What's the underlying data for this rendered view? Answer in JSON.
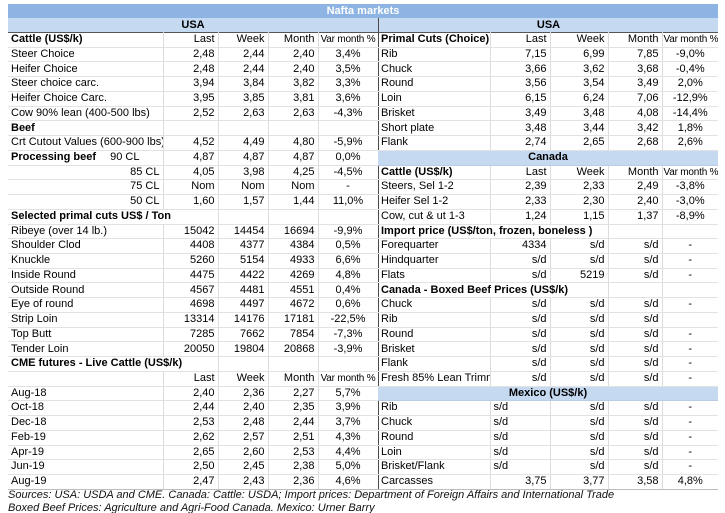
{
  "title": "Nafta markets",
  "colors": {
    "title_bg": "#8DB4E2",
    "section_bg": "#C5D9F1",
    "divider": "#4a4a4a"
  },
  "regions": {
    "left_header": "USA",
    "right_header": "USA"
  },
  "columns": [
    "Last",
    "Week",
    "Month",
    "Var month %"
  ],
  "left": {
    "rows": [
      {
        "t": "h",
        "label": "Cattle (US$/k)",
        "cols": [
          "Last",
          "Week",
          "Month",
          "Var month %"
        ]
      },
      {
        "t": "d",
        "label": "Steer Choice",
        "v": [
          "2,48",
          "2,44",
          "2,40",
          "3,4%"
        ]
      },
      {
        "t": "d",
        "label": "Heifer Choice",
        "v": [
          "2,48",
          "2,44",
          "2,40",
          "3,5%"
        ]
      },
      {
        "t": "d",
        "label": "Steer choice carc.",
        "v": [
          "3,94",
          "3,84",
          "3,82",
          "3,3%"
        ]
      },
      {
        "t": "d",
        "label": "Heifer Choice Carc.",
        "v": [
          "3,95",
          "3,85",
          "3,81",
          "3,6%"
        ]
      },
      {
        "t": "d",
        "label": "Cow 90% lean (400-500 lbs)",
        "v": [
          "2,52",
          "2,63",
          "2,63",
          "-4,3%"
        ]
      },
      {
        "t": "s",
        "label": "Beef",
        "span": 1
      },
      {
        "t": "d",
        "label": "Crt Cutout Values (600-900 lbs)",
        "v": [
          "4,52",
          "4,49",
          "4,80",
          "-5,9%"
        ]
      },
      {
        "t": "d",
        "label": "Processing beef",
        "boldLabel": true,
        "sub": "90 CL",
        "subPad": 20,
        "v": [
          "4,87",
          "4,87",
          "4,87",
          "0,0%"
        ]
      },
      {
        "t": "d",
        "label": "",
        "sub": "85 CL",
        "v": [
          "4,05",
          "3,98",
          "4,25",
          "-4,5%"
        ]
      },
      {
        "t": "d",
        "label": "",
        "sub": "75 CL",
        "v": [
          "Nom",
          "Nom",
          "Nom",
          "-"
        ]
      },
      {
        "t": "d",
        "label": "",
        "sub": "50 CL",
        "v": [
          "1,60",
          "1,57",
          "1,44",
          "11,0%"
        ]
      },
      {
        "t": "s",
        "label": "Selected primal cuts US$ / Ton",
        "span": 2
      },
      {
        "t": "d",
        "label": "Ribeye (over 14 lb.)",
        "v": [
          "15042",
          "14454",
          "16694",
          "-9,9%"
        ]
      },
      {
        "t": "d",
        "label": "Shoulder Clod",
        "v": [
          "4408",
          "4377",
          "4384",
          "0,5%"
        ]
      },
      {
        "t": "d",
        "label": "Knuckle",
        "v": [
          "5260",
          "5154",
          "4933",
          "6,6%"
        ]
      },
      {
        "t": "d",
        "label": "Inside Round",
        "v": [
          "4475",
          "4422",
          "4269",
          "4,8%"
        ]
      },
      {
        "t": "d",
        "label": "Outside Round",
        "v": [
          "4567",
          "4481",
          "4551",
          "0,4%"
        ]
      },
      {
        "t": "d",
        "label": "Eye of round",
        "v": [
          "4698",
          "4497",
          "4672",
          "0,6%"
        ]
      },
      {
        "t": "d",
        "label": "Strip Loin",
        "v": [
          "13314",
          "14176",
          "17181",
          "-22,5%"
        ]
      },
      {
        "t": "d",
        "label": "Top Butt",
        "v": [
          "7285",
          "7662",
          "7854",
          "-7,3%"
        ]
      },
      {
        "t": "d",
        "label": "Tender Loin",
        "v": [
          "20050",
          "19804",
          "20868",
          "-3,9%"
        ]
      },
      {
        "t": "s",
        "label": "CME futures - Live Cattle (US$/k)",
        "span": 2
      },
      {
        "t": "h",
        "label": "",
        "cols": [
          "Last",
          "Week",
          "Month",
          "Var month %"
        ]
      },
      {
        "t": "d",
        "label": "Aug-18",
        "v": [
          "2,40",
          "2,36",
          "2,27",
          "5,7%"
        ]
      },
      {
        "t": "d",
        "label": "Oct-18",
        "v": [
          "2,44",
          "2,40",
          "2,35",
          "3,9%"
        ]
      },
      {
        "t": "d",
        "label": "Dec-18",
        "v": [
          "2,53",
          "2,48",
          "2,44",
          "3,7%"
        ]
      },
      {
        "t": "d",
        "label": "Feb-19",
        "v": [
          "2,62",
          "2,57",
          "2,51",
          "4,3%"
        ]
      },
      {
        "t": "d",
        "label": "Apr-19",
        "v": [
          "2,65",
          "2,60",
          "2,53",
          "4,4%"
        ]
      },
      {
        "t": "d",
        "label": "Jun-19",
        "v": [
          "2,50",
          "2,45",
          "2,38",
          "5,0%"
        ]
      },
      {
        "t": "d",
        "label": "Aug-19",
        "v": [
          "2,47",
          "2,43",
          "2,36",
          "4,6%"
        ]
      }
    ]
  },
  "right": {
    "rows": [
      {
        "t": "h",
        "label": "Primal Cuts (Choice)",
        "cols": [
          "Last",
          "Week",
          "Month",
          "Var month %"
        ]
      },
      {
        "t": "d",
        "label": "Rib",
        "v": [
          "7,15",
          "6,99",
          "7,85",
          "-9,0%"
        ]
      },
      {
        "t": "d",
        "label": "Chuck",
        "v": [
          "3,66",
          "3,62",
          "3,68",
          "-0,4%"
        ]
      },
      {
        "t": "d",
        "label": "Round",
        "v": [
          "3,56",
          "3,54",
          "3,49",
          "2,0%"
        ]
      },
      {
        "t": "d",
        "label": "Loin",
        "v": [
          "6,15",
          "6,24",
          "7,06",
          "-12,9%"
        ]
      },
      {
        "t": "d",
        "label": "Brisket",
        "v": [
          "3,49",
          "3,48",
          "4,08",
          "-14,4%"
        ]
      },
      {
        "t": "d",
        "label": "Short plate",
        "v": [
          "3,48",
          "3,44",
          "3,42",
          "1,8%"
        ]
      },
      {
        "t": "d",
        "label": "Flank",
        "v": [
          "2,74",
          "2,65",
          "2,68",
          "2,6%"
        ]
      },
      {
        "t": "strip",
        "label": "Canada"
      },
      {
        "t": "h",
        "label": "Cattle (US$/k)",
        "cols": [
          "Last",
          "Week",
          "Month",
          "Var month %"
        ]
      },
      {
        "t": "d",
        "label": "Steers, Sel 1-2",
        "v": [
          "2,39",
          "2,33",
          "2,49",
          "-3,8%"
        ]
      },
      {
        "t": "d",
        "label": "Heifer Sel 1-2",
        "v": [
          "2,33",
          "2,30",
          "2,40",
          "-3,0%"
        ]
      },
      {
        "t": "d",
        "label": "Cow, cut & ut 1-3",
        "v": [
          "1,24",
          "1,15",
          "1,37",
          "-8,9%"
        ]
      },
      {
        "t": "s",
        "label": "Import price (US$/ton, frozen, boneless )",
        "span": 3
      },
      {
        "t": "d",
        "label": "Forequarter",
        "v": [
          "4334",
          "s/d",
          "s/d",
          "-"
        ]
      },
      {
        "t": "d",
        "label": "Hindquarter",
        "v": [
          "s/d",
          "s/d",
          "s/d",
          "-"
        ]
      },
      {
        "t": "d",
        "label": "Flats",
        "v": [
          "s/d",
          "5219",
          "s/d",
          "-"
        ]
      },
      {
        "t": "s",
        "label": "Canada - Boxed Beef Prices (US$/k)",
        "span": 3
      },
      {
        "t": "d",
        "label": "Chuck",
        "v": [
          "s/d",
          "s/d",
          "s/d",
          "-"
        ]
      },
      {
        "t": "d",
        "label": "Rib",
        "v": [
          "s/d",
          "s/d",
          "s/d",
          ""
        ]
      },
      {
        "t": "d",
        "label": "Round",
        "v": [
          "s/d",
          "s/d",
          "s/d",
          "-"
        ]
      },
      {
        "t": "d",
        "label": "Brisket",
        "v": [
          "s/d",
          "s/d",
          "s/d",
          "-"
        ]
      },
      {
        "t": "d",
        "label": "Flank",
        "v": [
          "s/d",
          "s/d",
          "s/d",
          "-"
        ]
      },
      {
        "t": "d",
        "label": "Fresh 85% Lean Trimmi",
        "v": [
          "s/d",
          "s/d",
          "s/d",
          "-"
        ]
      },
      {
        "t": "strip",
        "label": "Mexico (US$/k)"
      },
      {
        "t": "d",
        "label": "Rib",
        "lastLeft": true,
        "v": [
          "s/d",
          "s/d",
          "s/d",
          "-"
        ]
      },
      {
        "t": "d",
        "label": "Chuck",
        "lastLeft": true,
        "v": [
          "s/d",
          "s/d",
          "s/d",
          "-"
        ]
      },
      {
        "t": "d",
        "label": "Round",
        "lastLeft": true,
        "v": [
          "s/d",
          "s/d",
          "s/d",
          "-"
        ]
      },
      {
        "t": "d",
        "label": "Loin",
        "lastLeft": true,
        "v": [
          "s/d",
          "s/d",
          "s/d",
          "-"
        ]
      },
      {
        "t": "d",
        "label": "Brisket/Flank",
        "lastLeft": true,
        "v": [
          "s/d",
          "s/d",
          "s/d",
          "-"
        ]
      },
      {
        "t": "d",
        "label": "Carcasses",
        "v": [
          "3,75",
          "3,77",
          "3,58",
          "4,8%"
        ]
      }
    ]
  },
  "sources": {
    "line1": "Sources: USA: USDA and CME. Canada: Cattle: USDA; Import prices: Department of Foreign Affairs and International Trade",
    "line2": "Boxed Beef Prices: Agriculture and Agri-Food Canada. Mexico: Urner Barry"
  }
}
